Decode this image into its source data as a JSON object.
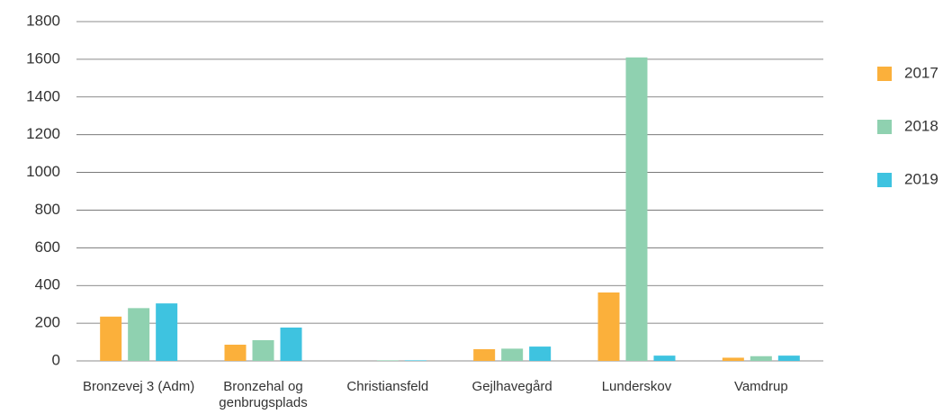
{
  "chart_data": {
    "type": "bar",
    "categories": [
      "Bronzevej 3 (Adm)",
      "Bronzehal og genbrugsplads",
      "Christiansfeld",
      "Gejlhavegård",
      "Lunderskov",
      "Vamdrup"
    ],
    "series": [
      {
        "name": "2017",
        "color": "#fbb03b",
        "values": [
          235,
          86,
          0,
          62,
          363,
          17
        ]
      },
      {
        "name": "2018",
        "color": "#8fd1b0",
        "values": [
          280,
          110,
          3,
          65,
          1610,
          25
        ]
      },
      {
        "name": "2019",
        "color": "#3ec3e0",
        "values": [
          305,
          177,
          3,
          76,
          28,
          28
        ]
      }
    ],
    "ylim": [
      0,
      1800
    ],
    "yticks": [
      0,
      200,
      400,
      600,
      800,
      1000,
      1200,
      1400,
      1600,
      1800
    ],
    "grid": true,
    "legend": "right"
  }
}
